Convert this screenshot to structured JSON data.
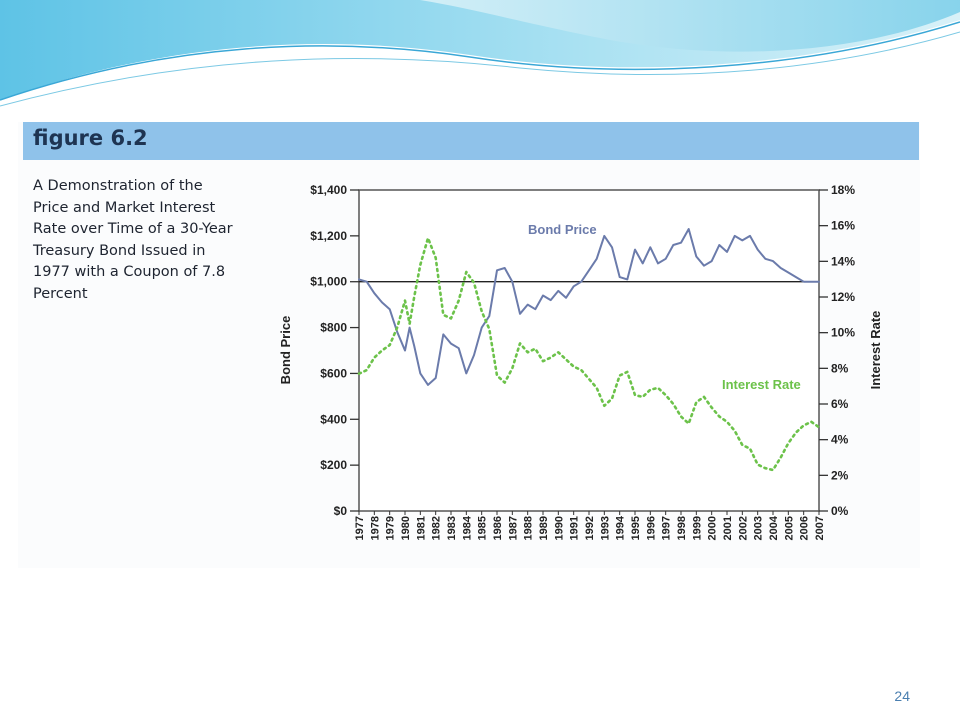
{
  "figure": {
    "title": "figure 6.2",
    "caption": "A Demonstration of the Price and Market Interest Rate over Time of a 30-Year Treasury Bond Issued in 1977 with a Coupon of 7.8 Percent"
  },
  "page_number": "24",
  "colors": {
    "bond_price": "#6b7bab",
    "interest_rate": "#6cc24a",
    "header_band": "#8fc2ea",
    "header_text": "#1e3452"
  },
  "chart_data": {
    "type": "line",
    "xlabel": "",
    "ylabel": "Bond Price",
    "y2label": "Interest Rate",
    "ylim": [
      0,
      1400
    ],
    "y2lim": [
      0,
      18
    ],
    "xlim": [
      1977,
      2007
    ],
    "x_ticks": [
      "1977",
      "1978",
      "1979",
      "1980",
      "1981",
      "1982",
      "1983",
      "1984",
      "1985",
      "1986",
      "1987",
      "1988",
      "1989",
      "1990",
      "1991",
      "1992",
      "1993",
      "1994",
      "1995",
      "1996",
      "1997",
      "1998",
      "1999",
      "2000",
      "2001",
      "2002",
      "2003",
      "2004",
      "2005",
      "2006",
      "2007"
    ],
    "y_ticks": [
      "$0",
      "$200",
      "$400",
      "$600",
      "$800",
      "$1,000",
      "$1,200",
      "$1,400"
    ],
    "y2_ticks": [
      "0%",
      "2%",
      "4%",
      "6%",
      "8%",
      "10%",
      "12%",
      "14%",
      "16%",
      "18%"
    ],
    "reference_line": 1000,
    "series": [
      {
        "name": "Bond Price",
        "axis": "left",
        "style": "solid",
        "x": [
          1977,
          1977.5,
          1978,
          1978.5,
          1979,
          1979.5,
          1980,
          1980.3,
          1980.6,
          1981,
          1981.5,
          1982,
          1982.5,
          1983,
          1983.5,
          1984,
          1984.5,
          1985,
          1985.5,
          1986,
          1986.5,
          1987,
          1987.5,
          1988,
          1988.5,
          1989,
          1989.5,
          1990,
          1990.5,
          1991,
          1991.5,
          1992,
          1992.5,
          1993,
          1993.5,
          1994,
          1994.5,
          1995,
          1995.5,
          1996,
          1996.5,
          1997,
          1997.5,
          1998,
          1998.5,
          1999,
          1999.5,
          2000,
          2000.5,
          2001,
          2001.5,
          2002,
          2002.5,
          2003,
          2003.5,
          2004,
          2004.5,
          2005,
          2005.5,
          2006,
          2006.5,
          2007
        ],
        "values": [
          1010,
          1000,
          950,
          910,
          880,
          780,
          700,
          800,
          720,
          600,
          550,
          580,
          770,
          730,
          710,
          600,
          680,
          800,
          850,
          1050,
          1060,
          1000,
          860,
          900,
          880,
          940,
          920,
          960,
          930,
          980,
          1000,
          1050,
          1100,
          1200,
          1150,
          1020,
          1010,
          1140,
          1080,
          1150,
          1080,
          1100,
          1160,
          1170,
          1230,
          1110,
          1070,
          1090,
          1160,
          1130,
          1200,
          1180,
          1200,
          1140,
          1100,
          1090,
          1060,
          1040,
          1020,
          1000,
          1000,
          1000
        ]
      },
      {
        "name": "Interest Rate",
        "axis": "right",
        "style": "dotted",
        "x": [
          1977,
          1977.5,
          1978,
          1978.5,
          1979,
          1979.5,
          1980,
          1980.3,
          1980.6,
          1981,
          1981.5,
          1982,
          1982.5,
          1983,
          1983.5,
          1984,
          1984.5,
          1985,
          1985.5,
          1986,
          1986.5,
          1987,
          1987.5,
          1988,
          1988.5,
          1989,
          1989.5,
          1990,
          1990.5,
          1991,
          1991.5,
          1992,
          1992.5,
          1993,
          1993.5,
          1994,
          1994.5,
          1995,
          1995.5,
          1996,
          1996.5,
          1997,
          1997.5,
          1998,
          1998.5,
          1999,
          1999.5,
          2000,
          2000.5,
          2001,
          2001.5,
          2002,
          2002.5,
          2003,
          2003.5,
          2004,
          2004.5,
          2005,
          2005.5,
          2006,
          2006.5,
          2007
        ],
        "values": [
          7.7,
          7.9,
          8.6,
          9.0,
          9.3,
          10.3,
          11.8,
          10.5,
          12.0,
          13.8,
          15.3,
          14.2,
          11.0,
          10.8,
          11.8,
          13.4,
          12.8,
          11.2,
          10.2,
          7.6,
          7.2,
          8.0,
          9.4,
          8.9,
          9.1,
          8.4,
          8.6,
          8.9,
          8.5,
          8.1,
          7.9,
          7.4,
          6.9,
          5.9,
          6.3,
          7.6,
          7.8,
          6.5,
          6.4,
          6.8,
          6.9,
          6.5,
          6.0,
          5.3,
          4.9,
          6.1,
          6.4,
          5.8,
          5.3,
          5.0,
          4.5,
          3.7,
          3.5,
          2.6,
          2.4,
          2.3,
          3.0,
          3.8,
          4.4,
          4.8,
          5.0,
          4.7
        ]
      }
    ],
    "annotations": [
      "Bond Price",
      "Interest Rate"
    ]
  }
}
